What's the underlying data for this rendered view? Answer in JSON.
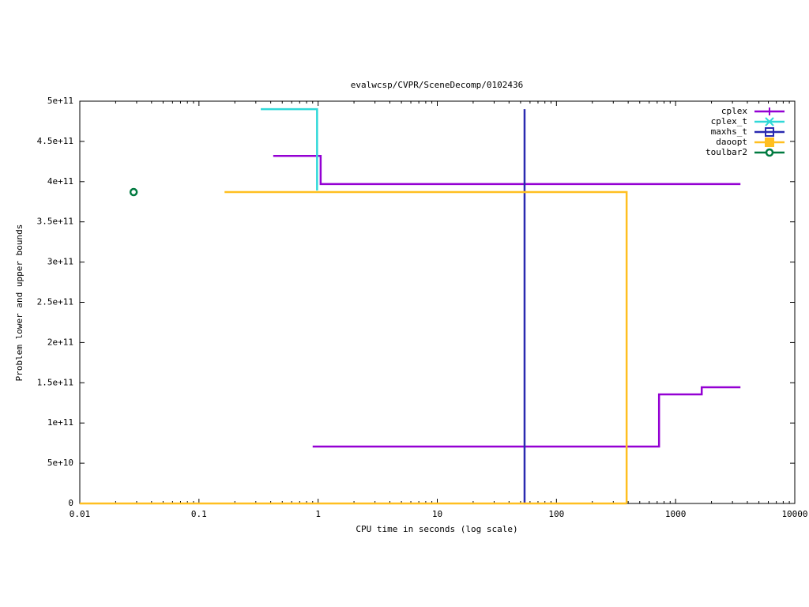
{
  "chart_data": {
    "type": "line",
    "title": "evalwcsp/CVPR/SceneDecomp/0102436",
    "x_label": "CPU time in seconds (log scale)",
    "y_label": "Problem lower and upper bounds",
    "xscale": "log",
    "xlim": [
      0.01,
      10000
    ],
    "xticks": [
      0.01,
      0.1,
      1,
      10,
      100,
      1000,
      10000
    ],
    "ylim": [
      0,
      500000000000
    ],
    "yticks": [
      0,
      {
        "value": 50000000000,
        "label": "5e+10"
      },
      {
        "value": 100000000000,
        "label": "1e+11"
      },
      {
        "value": 150000000000,
        "label": "1.5e+11"
      },
      {
        "value": 200000000000,
        "label": "2e+11"
      },
      {
        "value": 250000000000,
        "label": "2.5e+11"
      },
      {
        "value": 300000000000,
        "label": "3e+11"
      },
      {
        "value": 350000000000,
        "label": "3.5e+11"
      },
      {
        "value": 400000000000,
        "label": "4e+11"
      },
      {
        "value": 450000000000,
        "label": "4.5e+11"
      },
      {
        "value": 500000000000,
        "label": "5e+11"
      }
    ],
    "legend": "top-right",
    "series": [
      {
        "name": "cplex",
        "color": "#9400d3",
        "marker": "plus",
        "x": [
          0.42,
          1.05,
          1.05,
          3500,
          null,
          0.9,
          726,
          726,
          1656,
          1656,
          3500
        ],
        "values": [
          432000000000,
          432000000000,
          397000000000,
          397000000000,
          null,
          70700000000,
          70700000000,
          135600000000,
          135600000000,
          144400000000,
          144400000000
        ]
      },
      {
        "name": "cplex_t",
        "color": "#30d8d8",
        "marker": "cross",
        "x": [
          0.33,
          0.98,
          0.98
        ],
        "values": [
          490000000000,
          490000000000,
          389000000000
        ]
      },
      {
        "name": "maxhs_t",
        "color": "#2a2ab0",
        "marker": "square",
        "x": [
          54,
          54
        ],
        "values": [
          490000000000,
          0
        ]
      },
      {
        "name": "daoopt",
        "color": "#ffbf20",
        "marker": "filled-square",
        "x": [
          0.164,
          388,
          388,
          null,
          0.01,
          388
        ],
        "values": [
          387000000000,
          387000000000,
          0,
          null,
          0,
          0
        ]
      },
      {
        "name": "toulbar2",
        "color": "#007a40",
        "marker": "circle",
        "x": [
          0.0283
        ],
        "values": [
          387000000000
        ]
      }
    ]
  }
}
